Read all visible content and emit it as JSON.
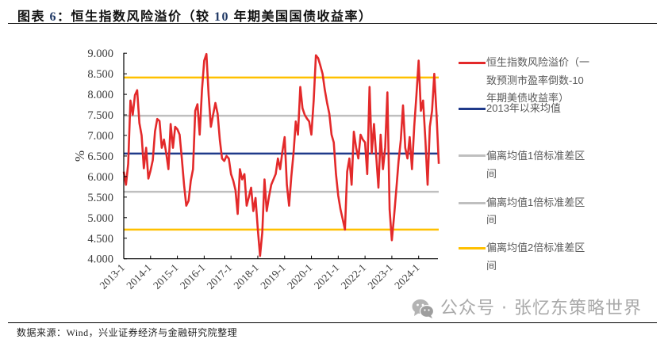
{
  "title": {
    "parts": [
      "图表 ",
      "6",
      "：恒生指数风险溢价（较 ",
      "10",
      " 年期美国国债收益率）"
    ]
  },
  "source": "数据来源：Wind，兴业证券经济与金融研究院整理",
  "watermark": {
    "icon": "wechat-icon",
    "text": "公众号 · 张忆东策略世界",
    "color": "#a9a9a9"
  },
  "chart_data": {
    "type": "line",
    "title": "恒生指数风险溢价（较10年期美国国债收益率）",
    "xlabel": "",
    "ylabel": "%",
    "ylim": [
      4.0,
      9.0
    ],
    "y_ticks": [
      "4.000",
      "4.500",
      "5.000",
      "5.500",
      "6.000",
      "6.500",
      "7.000",
      "7.500",
      "8.000",
      "8.500",
      "9.000"
    ],
    "x_ticks": [
      "2013-1",
      "2014-1",
      "2015-1",
      "2016-1",
      "2017-1",
      "2018-1",
      "2019-1",
      "2020-1",
      "2021-1",
      "2022-1",
      "2023-1",
      "2024-1"
    ],
    "grid": false,
    "legend_position": "right",
    "legend": [
      {
        "label": "恒生指数风险溢价（一致预测市盈率倒数-10年期美债收益率）",
        "color": "#E3292A"
      },
      {
        "label": "2013年以来均值",
        "color": "#1F3A8A"
      },
      {
        "label": "偏离均值1倍标准差区间",
        "color": "#BFBFBF"
      },
      {
        "label": "偏离均值1倍标准差区间",
        "color": "#BFBFBF"
      },
      {
        "label": "偏离均值2倍标准差区间",
        "color": "#FFC000"
      }
    ],
    "reference_lines": [
      {
        "name": "偏离均值2倍标准差区间(上)",
        "value": 8.41,
        "color": "#FFC000"
      },
      {
        "name": "偏离均值1倍标准差区间(上)",
        "value": 7.48,
        "color": "#BFBFBF"
      },
      {
        "name": "2013年以来均值",
        "value": 6.56,
        "color": "#1F3A8A"
      },
      {
        "name": "偏离均值1倍标准差区间(下)",
        "value": 5.63,
        "color": "#BFBFBF"
      },
      {
        "name": "偏离均值2倍标准差区间(下)",
        "value": 4.71,
        "color": "#FFC000"
      }
    ],
    "x": [
      "2013-01",
      "2013-02",
      "2013-03",
      "2013-04",
      "2013-05",
      "2013-06",
      "2013-07",
      "2013-08",
      "2013-09",
      "2013-10",
      "2013-11",
      "2013-12",
      "2014-01",
      "2014-02",
      "2014-03",
      "2014-04",
      "2014-05",
      "2014-06",
      "2014-07",
      "2014-08",
      "2014-09",
      "2014-10",
      "2014-11",
      "2014-12",
      "2015-01",
      "2015-02",
      "2015-03",
      "2015-04",
      "2015-05",
      "2015-06",
      "2015-07",
      "2015-08",
      "2015-09",
      "2015-10",
      "2015-11",
      "2015-12",
      "2016-01",
      "2016-02",
      "2016-03",
      "2016-04",
      "2016-05",
      "2016-06",
      "2016-07",
      "2016-08",
      "2016-09",
      "2016-10",
      "2016-11",
      "2016-12",
      "2017-01",
      "2017-02",
      "2017-03",
      "2017-04",
      "2017-05",
      "2017-06",
      "2017-07",
      "2017-08",
      "2017-09",
      "2017-10",
      "2017-11",
      "2017-12",
      "2018-01",
      "2018-02",
      "2018-03",
      "2018-04",
      "2018-05",
      "2018-06",
      "2018-07",
      "2018-08",
      "2018-09",
      "2018-10",
      "2018-11",
      "2018-12",
      "2019-01",
      "2019-02",
      "2019-03",
      "2019-04",
      "2019-05",
      "2019-06",
      "2019-07",
      "2019-08",
      "2019-09",
      "2019-10",
      "2019-11",
      "2019-12",
      "2020-01",
      "2020-02",
      "2020-03",
      "2020-04",
      "2020-05",
      "2020-06",
      "2020-07",
      "2020-08",
      "2020-09",
      "2020-10",
      "2020-11",
      "2020-12",
      "2021-01",
      "2021-02",
      "2021-03",
      "2021-04",
      "2021-05",
      "2021-06",
      "2021-07",
      "2021-08",
      "2021-09",
      "2021-10",
      "2021-11",
      "2021-12",
      "2022-01",
      "2022-02",
      "2022-03",
      "2022-04",
      "2022-05",
      "2022-06",
      "2022-07",
      "2022-08",
      "2022-09",
      "2022-10",
      "2022-11",
      "2022-12",
      "2023-01",
      "2023-02",
      "2023-03",
      "2023-04",
      "2023-05",
      "2023-06",
      "2023-07",
      "2023-08",
      "2023-09",
      "2023-10",
      "2023-11",
      "2023-12",
      "2024-01",
      "2024-02",
      "2024-03",
      "2024-04",
      "2024-05",
      "2024-06",
      "2024-07",
      "2024-08",
      "2024-09",
      "2024-10"
    ],
    "series": [
      {
        "name": "恒生指数风险溢价（一致预测市盈率倒数-10年期美债收益率）",
        "color": "#E3292A",
        "values": [
          6.12,
          5.8,
          6.31,
          7.85,
          7.5,
          7.98,
          8.1,
          7.3,
          7.0,
          6.2,
          6.7,
          5.95,
          6.15,
          6.4,
          7.1,
          7.4,
          7.35,
          6.7,
          6.9,
          6.57,
          6.18,
          7.28,
          6.7,
          7.21,
          7.15,
          7.02,
          6.44,
          5.8,
          5.29,
          5.41,
          5.9,
          6.18,
          7.6,
          7.76,
          7.02,
          8.11,
          8.82,
          8.98,
          7.98,
          7.21,
          7.5,
          7.79,
          7.53,
          6.89,
          6.44,
          6.38,
          6.5,
          6.44,
          6.06,
          5.9,
          5.67,
          5.09,
          6.18,
          5.93,
          6.06,
          5.29,
          5.5,
          5.73,
          5.16,
          5.48,
          4.71,
          4.07,
          4.64,
          5.93,
          5.16,
          5.5,
          5.8,
          5.93,
          6.06,
          6.44,
          6.18,
          6.6,
          6.96,
          5.8,
          5.29,
          6.0,
          6.57,
          7.34,
          7.02,
          8.18,
          7.66,
          7.5,
          7.41,
          7.34,
          7.02,
          7.85,
          8.95,
          8.88,
          8.7,
          8.5,
          8.11,
          7.79,
          7.53,
          7.02,
          6.83,
          6.06,
          5.54,
          5.2,
          4.96,
          4.71,
          6.12,
          6.44,
          5.8,
          7.09,
          6.7,
          6.44,
          7.02,
          6.9,
          6.83,
          6.06,
          8.18,
          6.57,
          7.28,
          6.5,
          5.73,
          7.02,
          6.18,
          6.7,
          8.05,
          5.2,
          4.45,
          5.03,
          5.7,
          6.38,
          6.89,
          7.73,
          6.7,
          6.44,
          6.96,
          6.18,
          7.21,
          7.98,
          8.82,
          7.6,
          7.85,
          6.89,
          5.8,
          7.21,
          7.6,
          8.5,
          7.53,
          6.31
        ]
      }
    ]
  }
}
